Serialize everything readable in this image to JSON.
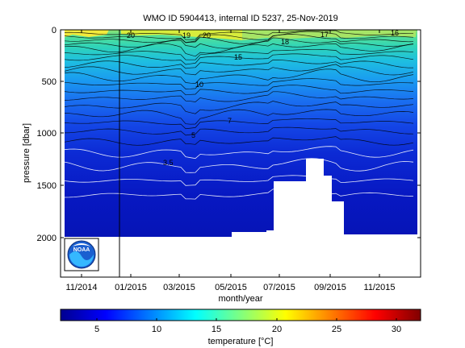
{
  "chart_data": {
    "type": "heatmap",
    "title": "WMO ID 5904413, internal ID 5237, 25-Nov-2019",
    "xlabel": "month/year",
    "ylabel": "pressure [dbar]",
    "x_ticks": [
      "11/2014",
      "01/2015",
      "03/2015",
      "05/2015",
      "07/2015",
      "09/2015",
      "11/2015"
    ],
    "y_ticks": [
      "0",
      "500",
      "1000",
      "1500",
      "2000"
    ],
    "ylim": [
      2400,
      0
    ],
    "colorbar": {
      "label": "temperature [°C]",
      "ticks": [
        "5",
        "10",
        "15",
        "20",
        "25",
        "30"
      ],
      "range": [
        2,
        32
      ]
    },
    "contour_labels": [
      "20",
      "20",
      "19",
      "18",
      "17",
      "16",
      "15",
      "10",
      "7",
      "5",
      "3.5"
    ],
    "contour_levels": [
      3,
      3.5,
      4,
      4.5,
      5,
      5.5,
      6,
      6.5,
      7,
      8,
      9,
      10,
      11,
      12,
      13,
      14,
      15,
      16,
      17,
      18,
      19,
      20
    ],
    "profile_bottom_dbar": [
      {
        "period": "10/2014 - 12/2015",
        "value": 1990
      },
      {
        "period": "07/2015 - 09/2015 gap",
        "value": 1450
      }
    ],
    "logo": "NOAA"
  }
}
